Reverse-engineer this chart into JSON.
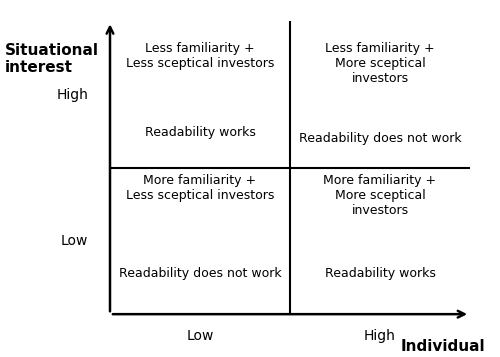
{
  "background_color": "#ffffff",
  "ylabel": "Situational\ninterest",
  "xlabel": "Individual\ninterest",
  "y_tick_labels": [
    "Low",
    "High"
  ],
  "x_tick_labels": [
    "Low",
    "High"
  ],
  "quadrant_texts": {
    "top_left_top": "Less familiarity +\nLess sceptical investors",
    "top_left_bottom": "Readability works",
    "top_right_top": "Less familiarity +\nMore sceptical\ninvestors",
    "top_right_bottom": "Readability does not work",
    "bottom_left_top": "More familiarity +\nLess sceptical investors",
    "bottom_left_bottom": "Readability does not work",
    "bottom_right_top": "More familiarity +\nMore sceptical\ninvestors",
    "bottom_right_bottom": "Readability works"
  },
  "text_fontsize": 9,
  "axis_label_fontsize": 11,
  "tick_label_fontsize": 10,
  "arrow_lw": 1.8,
  "divider_lw": 1.5,
  "figsize": [
    5.0,
    3.57
  ],
  "dpi": 100
}
